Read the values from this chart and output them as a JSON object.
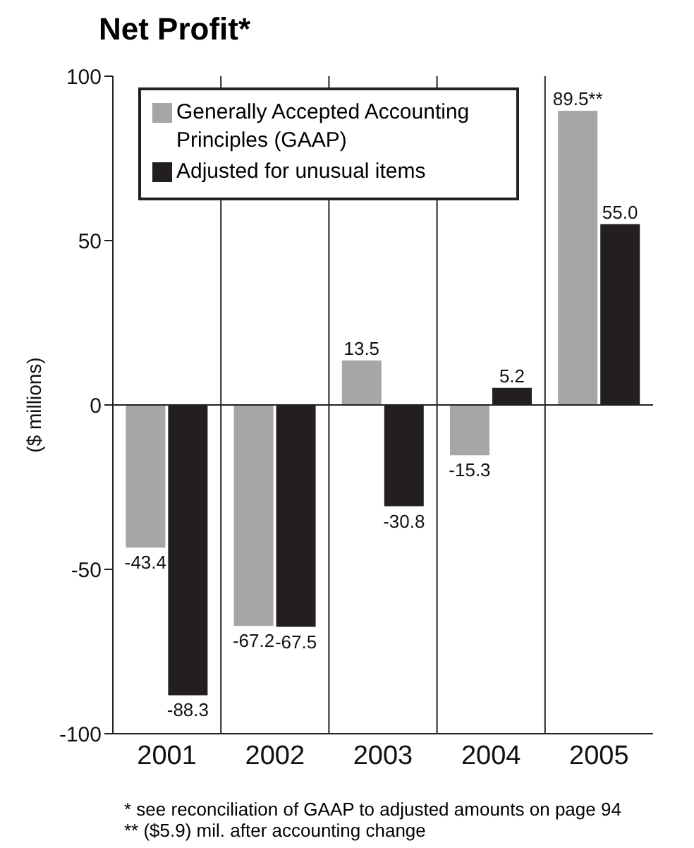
{
  "chart_data": {
    "type": "bar",
    "title": "Net Profit*",
    "ylabel": "($ millions)",
    "categories": [
      "2001",
      "2002",
      "2003",
      "2004",
      "2005"
    ],
    "series": [
      {
        "name": "Generally Accepted Accounting Principles (GAAP)",
        "color": "#a6a6a6",
        "values": [
          -43.4,
          -67.2,
          13.5,
          -15.3,
          89.5
        ],
        "value_labels": [
          "-43.4",
          "-67.2",
          "13.5",
          "-15.3",
          "89.5**"
        ]
      },
      {
        "name": "Adjusted for unusual items",
        "color": "#231f20",
        "values": [
          -88.3,
          -67.5,
          -30.8,
          5.2,
          55.0
        ],
        "value_labels": [
          "-88.3",
          "-67.5",
          "-30.8",
          "5.2",
          "55.0"
        ]
      }
    ],
    "ylim": [
      -100,
      100
    ],
    "yticks": [
      -100,
      -50,
      0,
      50,
      100
    ],
    "grid": "x",
    "ref_lines": [
      {
        "axis": "y",
        "value": 0
      }
    ],
    "legend": "top left",
    "annotations": [
      "* see reconciliation of GAAP to adjusted amounts on page 94",
      "** ($5.9) mil. after accounting change"
    ]
  }
}
